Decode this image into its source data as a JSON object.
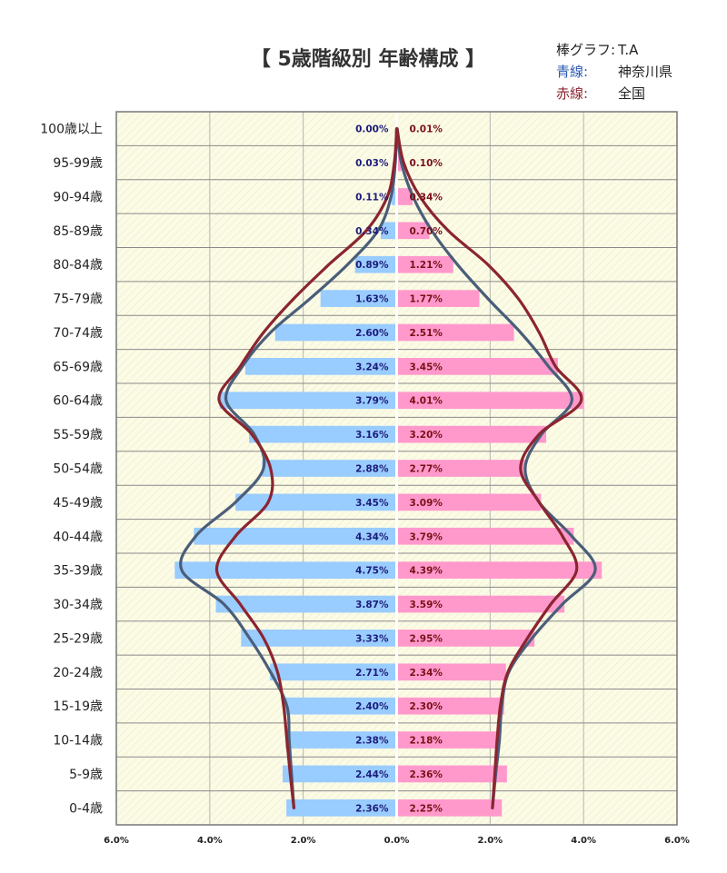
{
  "title": "【 5歳階級別 年齢構成 】",
  "legend": [
    {
      "key": "棒グラフ:",
      "value": "T.A",
      "color": "#222222"
    },
    {
      "key": "青線:",
      "value": "神奈川県",
      "color": "#2a58b0"
    },
    {
      "key": "赤線:",
      "value": "全国",
      "color": "#8b2530"
    }
  ],
  "chart_data": {
    "type": "bar",
    "orientation": "horizontal-population-pyramid",
    "categories": [
      "100歳以上",
      "95-99歳",
      "90-94歳",
      "85-89歳",
      "80-84歳",
      "75-79歳",
      "70-74歳",
      "65-69歳",
      "60-64歳",
      "55-59歳",
      "50-54歳",
      "45-49歳",
      "40-44歳",
      "35-39歳",
      "30-34歳",
      "25-29歳",
      "20-24歳",
      "15-19歳",
      "10-14歳",
      "5-9歳",
      "0-4歳"
    ],
    "bars_left": {
      "values": [
        0.0,
        0.03,
        0.11,
        0.34,
        0.89,
        1.63,
        2.6,
        3.24,
        3.79,
        3.16,
        2.88,
        3.45,
        4.34,
        4.75,
        3.87,
        3.33,
        2.71,
        2.4,
        2.38,
        2.44,
        2.36
      ],
      "labels": [
        "0.00%",
        "0.03%",
        "0.11%",
        "0.34%",
        "0.89%",
        "1.63%",
        "2.60%",
        "3.24%",
        "3.79%",
        "3.16%",
        "2.88%",
        "3.45%",
        "4.34%",
        "4.75%",
        "3.87%",
        "3.33%",
        "2.71%",
        "2.40%",
        "2.38%",
        "2.44%",
        "2.36%"
      ],
      "color": "#99ccff",
      "label_color": "#1c1c7a"
    },
    "bars_right": {
      "values": [
        0.01,
        0.1,
        0.34,
        0.7,
        1.21,
        1.77,
        2.51,
        3.45,
        4.01,
        3.2,
        2.77,
        3.09,
        3.79,
        4.39,
        3.59,
        2.95,
        2.34,
        2.3,
        2.18,
        2.36,
        2.25
      ],
      "labels": [
        "0.01%",
        "0.10%",
        "0.34%",
        "0.70%",
        "1.21%",
        "1.77%",
        "2.51%",
        "3.45%",
        "4.01%",
        "3.20%",
        "2.77%",
        "3.09%",
        "3.79%",
        "4.39%",
        "3.59%",
        "2.95%",
        "2.34%",
        "2.30%",
        "2.18%",
        "2.36%",
        "2.25%"
      ],
      "color": "#ff99cc",
      "label_color": "#7a1018"
    },
    "line_blue": {
      "left": [
        0.0,
        0.03,
        0.12,
        0.4,
        1.05,
        1.85,
        2.7,
        3.3,
        3.65,
        3.05,
        2.85,
        3.45,
        4.3,
        4.6,
        3.7,
        3.15,
        2.7,
        2.35,
        2.3,
        2.25,
        2.2
      ],
      "right": [
        0.01,
        0.1,
        0.35,
        0.75,
        1.3,
        1.95,
        2.65,
        3.25,
        3.75,
        3.1,
        2.75,
        3.05,
        3.75,
        4.25,
        3.55,
        2.9,
        2.4,
        2.25,
        2.2,
        2.12,
        2.05
      ],
      "color": "#4a5e7a"
    },
    "line_red": {
      "left": [
        0.0,
        0.05,
        0.2,
        0.65,
        1.45,
        2.2,
        2.85,
        3.35,
        3.8,
        3.1,
        2.7,
        2.75,
        3.45,
        3.85,
        3.35,
        2.85,
        2.55,
        2.42,
        2.35,
        2.28,
        2.2
      ],
      "right": [
        0.01,
        0.15,
        0.5,
        1.1,
        1.95,
        2.6,
        3.05,
        3.4,
        3.95,
        3.05,
        2.65,
        3.05,
        3.55,
        3.85,
        3.3,
        2.8,
        2.38,
        2.22,
        2.15,
        2.1,
        2.05
      ],
      "color": "#8b2530"
    },
    "x_ticks": [
      "6.0%",
      "4.0%",
      "2.0%",
      "0.0%",
      "2.0%",
      "4.0%",
      "6.0%"
    ],
    "xlim": [
      -6,
      6
    ],
    "grid": true
  }
}
